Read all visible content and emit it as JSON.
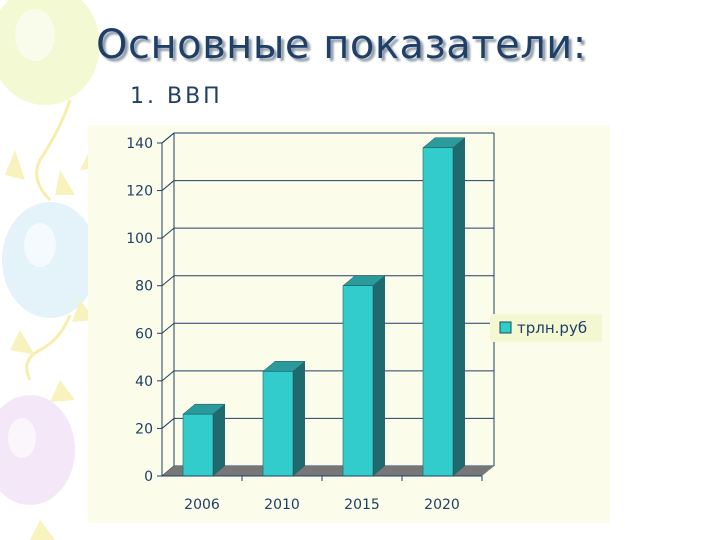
{
  "slide": {
    "title": "Основные показатели:",
    "subtitle": "1. ВВП"
  },
  "colors": {
    "title": "#1f3f66",
    "bar_front": "#33cccc",
    "bar_side": "#1f6a6e",
    "bar_top": "#2a9a9c",
    "floor": "#777777",
    "grid": "#1f3f66",
    "chart_bg": "#fbfdea"
  },
  "chart_data": {
    "type": "bar",
    "style": "3d-column",
    "categories": [
      "2006",
      "2010",
      "2015",
      "2020"
    ],
    "series": [
      {
        "name": "трлн.руб",
        "values": [
          26,
          44,
          80,
          138
        ]
      }
    ],
    "yticks": [
      0,
      20,
      40,
      60,
      80,
      100,
      120,
      140
    ],
    "ylim": [
      0,
      140
    ],
    "grid": true,
    "legend": "right"
  }
}
